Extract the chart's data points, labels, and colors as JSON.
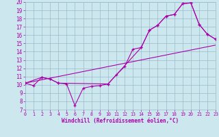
{
  "xlabel": "Windchill (Refroidissement éolien,°C)",
  "bg_color": "#cce8ee",
  "grid_color": "#99bbcc",
  "line_color": "#aa00aa",
  "xmin": 0,
  "xmax": 23,
  "ymin": 7,
  "ymax": 20,
  "line1_x": [
    0,
    1,
    2,
    3,
    4,
    5,
    6,
    7,
    8,
    9,
    10,
    11,
    12,
    13,
    14,
    15,
    16,
    17,
    18,
    19,
    20,
    21,
    22,
    23
  ],
  "line1_y": [
    10.2,
    9.9,
    10.9,
    10.7,
    10.2,
    10.1,
    7.5,
    9.6,
    9.8,
    9.9,
    10.1,
    11.2,
    12.2,
    14.3,
    14.5,
    16.6,
    17.2,
    18.3,
    18.5,
    19.8,
    19.9,
    17.3,
    16.1,
    15.5
  ],
  "line2_x": [
    0,
    2,
    3,
    4,
    10,
    14,
    15,
    16,
    17,
    18,
    19,
    20,
    21,
    22,
    23
  ],
  "line2_y": [
    10.2,
    10.9,
    10.7,
    10.2,
    10.1,
    14.5,
    16.6,
    17.2,
    18.3,
    18.5,
    19.8,
    19.9,
    17.3,
    16.1,
    15.5
  ],
  "line3_x": [
    0,
    23
  ],
  "line3_y": [
    10.2,
    14.8
  ]
}
